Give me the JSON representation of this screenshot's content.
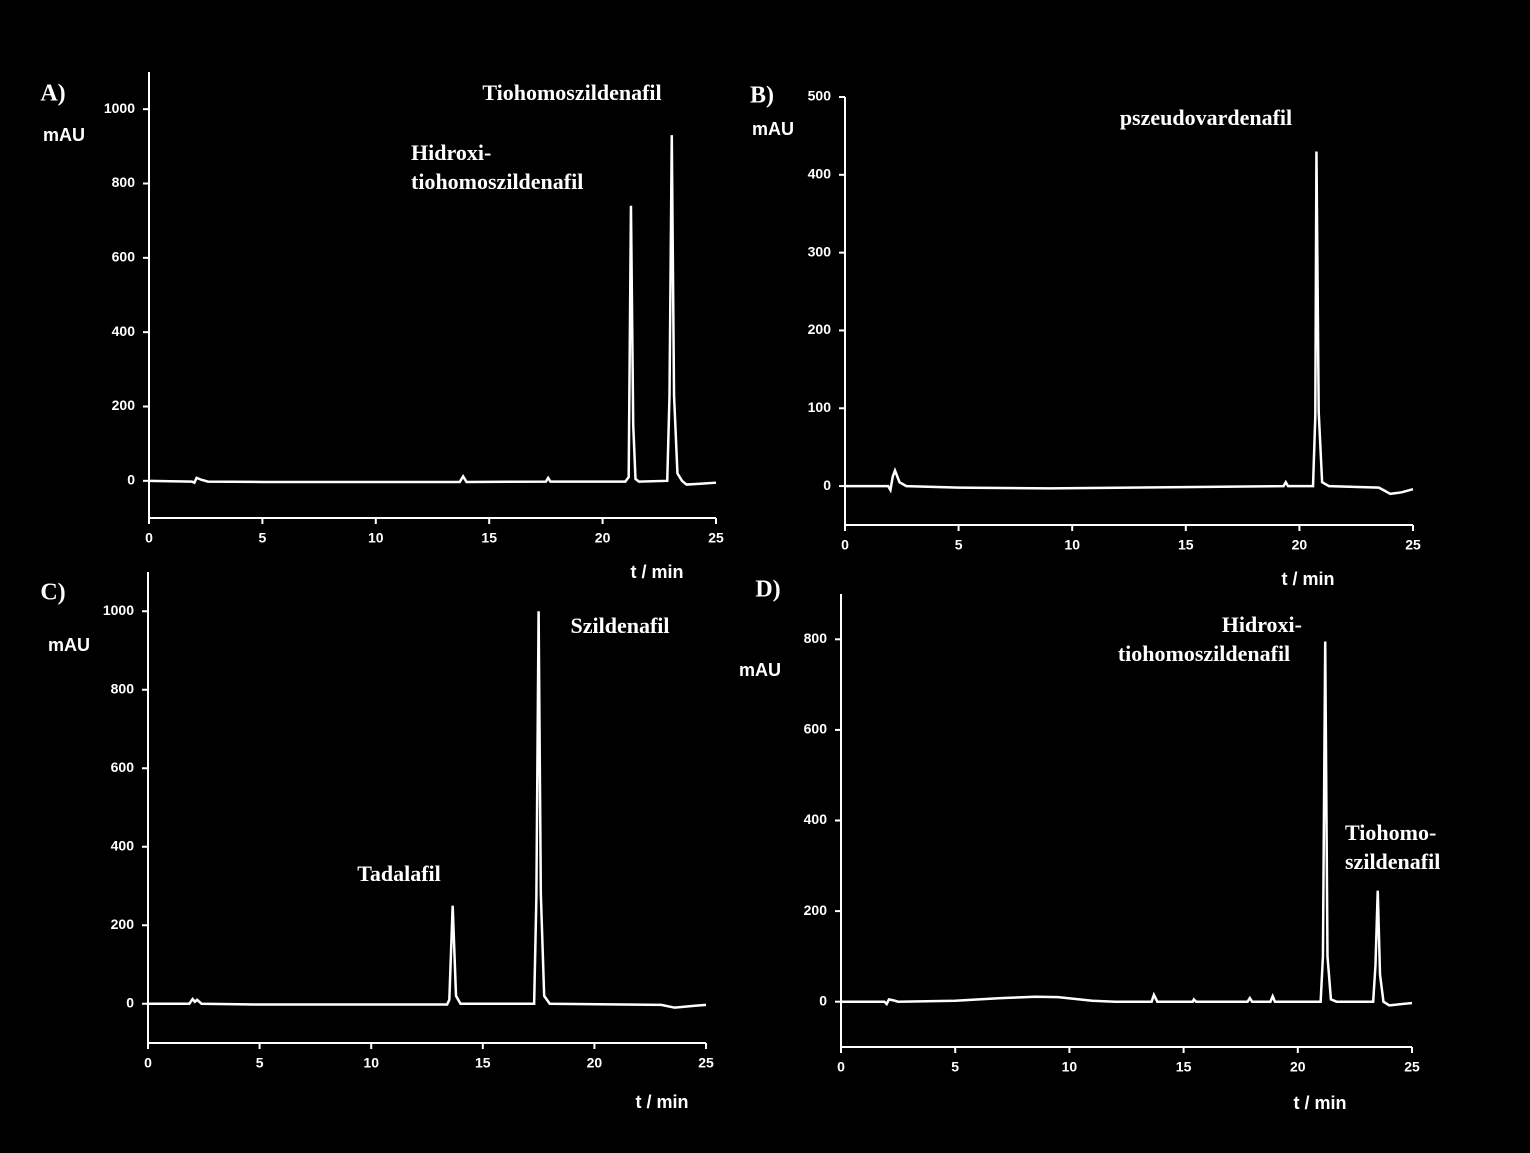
{
  "chart_data": [
    {
      "type": "line",
      "panel_label": "A)",
      "y_label": "mAU",
      "x_label": "t / min",
      "annotations": [
        [
          "Tiohomoszildenafil"
        ],
        [
          "Hidroxi-",
          "tiohomoszildenafil"
        ]
      ],
      "color": "#ffffff",
      "xlim": [
        0,
        25
      ],
      "xticks": [
        0,
        5,
        10,
        15,
        20,
        25
      ],
      "ylim": [
        -100,
        1100
      ],
      "yticks": [
        0,
        200,
        400,
        600,
        800,
        1000
      ],
      "x": [
        0,
        1.9,
        2.0,
        2.1,
        2.3,
        2.6,
        5,
        10,
        13.7,
        13.85,
        14.0,
        17.5,
        17.6,
        17.7,
        21.0,
        21.15,
        21.25,
        21.35,
        21.45,
        21.6,
        22.85,
        22.95,
        23.05,
        23.15,
        23.3,
        23.5,
        23.7,
        24.3,
        25
      ],
      "values": [
        0,
        -2,
        -5,
        8,
        3,
        -2,
        -3,
        -3,
        -3,
        12,
        -3,
        -2,
        8,
        -2,
        -2,
        10,
        740,
        150,
        5,
        -2,
        0,
        230,
        930,
        230,
        20,
        0,
        -10,
        -8,
        -5
      ]
    },
    {
      "type": "line",
      "panel_label": "B)",
      "y_label": "mAU",
      "x_label": "t / min",
      "annotations": [
        [
          "pszeudovardenafil"
        ]
      ],
      "color": "#ffffff",
      "xlim": [
        0,
        25
      ],
      "xticks": [
        0,
        5,
        10,
        15,
        20,
        25
      ],
      "ylim": [
        -50,
        500
      ],
      "yticks": [
        0,
        100,
        200,
        300,
        400,
        500
      ],
      "x": [
        0,
        1.9,
        2.0,
        2.1,
        2.2,
        2.4,
        2.7,
        5,
        9,
        16,
        19.3,
        19.4,
        19.5,
        20.6,
        20.7,
        20.75,
        20.85,
        21.0,
        21.3,
        23.5,
        24,
        24.5,
        25
      ],
      "values": [
        0,
        0,
        -5,
        12,
        20,
        5,
        0,
        -2,
        -3,
        -1,
        0,
        5,
        0,
        0,
        90,
        430,
        95,
        5,
        0,
        -2,
        -10,
        -8,
        -4
      ]
    },
    {
      "type": "line",
      "panel_label": "C)",
      "y_label": "mAU",
      "x_label": "t / min",
      "annotations": [
        [
          "Szildenafil"
        ],
        [
          "Tadalafil"
        ]
      ],
      "color": "#ffffff",
      "xlim": [
        0,
        25
      ],
      "xticks": [
        0,
        5,
        10,
        15,
        20,
        25
      ],
      "ylim": [
        -100,
        1100
      ],
      "yticks": [
        0,
        200,
        400,
        600,
        800,
        1000
      ],
      "x": [
        0,
        1.85,
        2.0,
        2.1,
        2.2,
        2.4,
        5,
        13.4,
        13.5,
        13.65,
        13.8,
        14.0,
        17.3,
        17.4,
        17.5,
        17.6,
        17.75,
        18,
        23.0,
        23.6,
        24.5,
        25
      ],
      "values": [
        0,
        0,
        12,
        5,
        10,
        0,
        -2,
        -2,
        10,
        250,
        20,
        0,
        0,
        270,
        1000,
        280,
        20,
        0,
        -3,
        -10,
        -5,
        -3
      ]
    },
    {
      "type": "line",
      "panel_label": "D)",
      "y_label": "mAU",
      "x_label": "t / min",
      "annotations": [
        [
          "Hidroxi-",
          "tiohomoszildenafil"
        ],
        [
          "Tiohomo-",
          "szildenafil"
        ]
      ],
      "color": "#ffffff",
      "xlim": [
        0,
        25
      ],
      "xticks": [
        0,
        5,
        10,
        15,
        20,
        25
      ],
      "ylim": [
        -100,
        900
      ],
      "yticks": [
        0,
        200,
        400,
        600,
        800
      ],
      "x": [
        0,
        1.9,
        2.0,
        2.1,
        2.3,
        2.5,
        5,
        7,
        8.5,
        9.5,
        11,
        12,
        13.6,
        13.7,
        13.85,
        15.4,
        15.45,
        15.55,
        17.8,
        17.9,
        18.0,
        18.8,
        18.9,
        19.0,
        21.0,
        21.1,
        21.2,
        21.3,
        21.45,
        21.7,
        23.3,
        23.4,
        23.5,
        23.6,
        23.75,
        24.0,
        25
      ],
      "values": [
        0,
        0,
        -5,
        5,
        3,
        0,
        2,
        8,
        11,
        10,
        2,
        0,
        0,
        15,
        0,
        0,
        5,
        0,
        0,
        8,
        0,
        0,
        12,
        0,
        0,
        100,
        795,
        100,
        5,
        0,
        0,
        80,
        245,
        60,
        0,
        -8,
        -3
      ]
    }
  ]
}
